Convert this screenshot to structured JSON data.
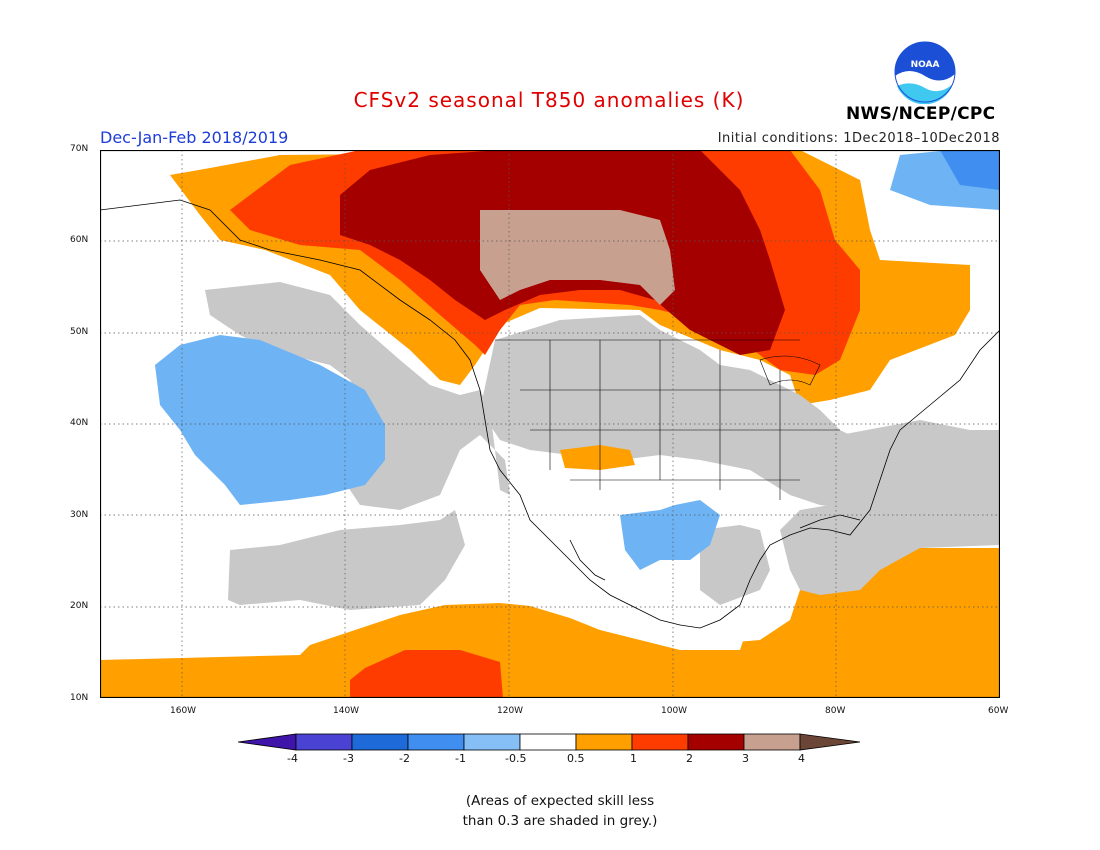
{
  "title": "CFSv2 seasonal T850 anomalies (K)",
  "season": "Dec-Jan-Feb 2018/2019",
  "initial_conditions": "Initial conditions: 1Dec2018–10Dec2018",
  "agency": "NWS/NCEP/CPC",
  "logo_text": "NOAA",
  "note_line1": "(Areas of expected skill less",
  "note_line2": "than 0.3 are shaded in grey.)",
  "lat_labels": [
    "70N",
    "60N",
    "50N",
    "40N",
    "30N",
    "20N",
    "10N"
  ],
  "lon_labels": [
    "160W",
    "140W",
    "120W",
    "100W",
    "80W",
    "60W"
  ],
  "map_extent": {
    "lon_min": -170,
    "lon_max": -60,
    "lat_min": 10,
    "lat_max": 70
  },
  "colorbar": {
    "labels": [
      "-4",
      "-3",
      "-2",
      "-1",
      "-0.5",
      "0.5",
      "1",
      "2",
      "3",
      "4"
    ],
    "colors": [
      "#3f14a8",
      "#4a42d2",
      "#1e6ad8",
      "#3f8ef0",
      "#86bef6",
      "#ffffff",
      "#ffa000",
      "#ff3c00",
      "#a50000",
      "#c8a090",
      "#6b4636"
    ]
  },
  "colors": {
    "grey_low_skill": "#c8c8c8",
    "orange": "#ffa000",
    "red_orange": "#ff3c00",
    "dark_red": "#a50000",
    "tan": "#c8a090",
    "light_blue": "#6eb4f4",
    "blue": "#3f8ef0"
  }
}
